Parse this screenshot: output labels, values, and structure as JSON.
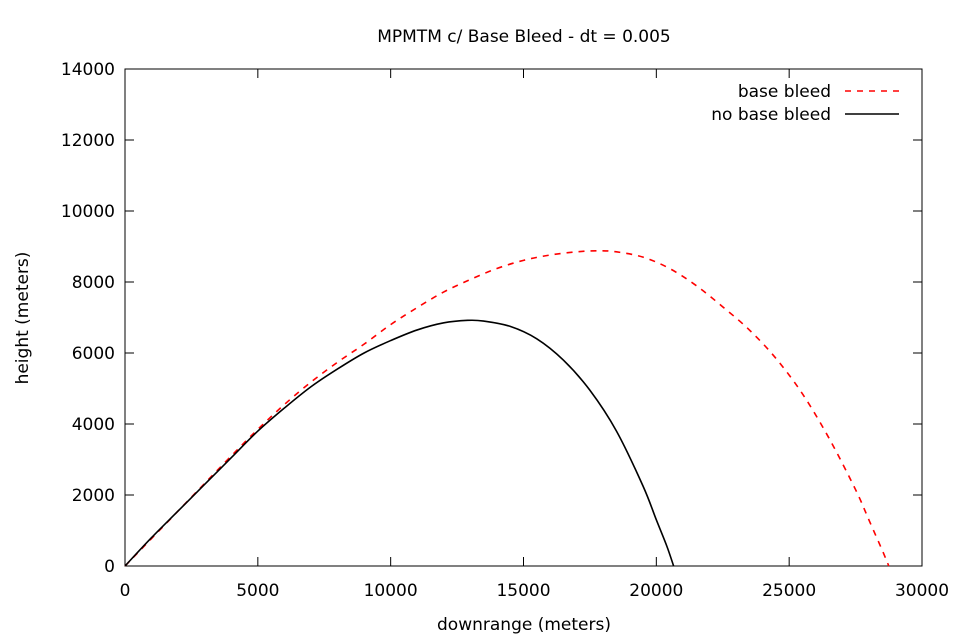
{
  "chart_data": {
    "type": "line",
    "title": "MPMTM c/ Base Bleed - dt = 0.005",
    "xlabel": "downrange (meters)",
    "ylabel": "height (meters)",
    "xlim": [
      0,
      30000
    ],
    "ylim": [
      0,
      14000
    ],
    "xticks": [
      0,
      5000,
      10000,
      15000,
      20000,
      25000,
      30000
    ],
    "yticks": [
      0,
      2000,
      4000,
      6000,
      8000,
      10000,
      12000,
      14000
    ],
    "xtick_labels": [
      "0",
      "5000",
      "10000",
      "15000",
      "20000",
      "25000",
      "30000"
    ],
    "ytick_labels": [
      "0",
      "2000",
      "4000",
      "6000",
      "8000",
      "10000",
      "12000",
      "14000"
    ],
    "grid": false,
    "legend_position": "top-right",
    "series": [
      {
        "name": "base bleed",
        "color": "#ff0000",
        "dash": "dashed",
        "x": [
          0,
          2000,
          4000,
          5000,
          6000,
          7000,
          8000,
          9000,
          10000,
          11000,
          12000,
          13000,
          14000,
          15000,
          16000,
          17000,
          17800,
          18500,
          19500,
          20500,
          21500,
          22500,
          23500,
          24500,
          25500,
          26500,
          27500,
          28000,
          28500,
          28750
        ],
        "y": [
          0,
          1550,
          3100,
          3850,
          4550,
          5180,
          5740,
          6250,
          6800,
          7280,
          7720,
          8070,
          8380,
          8610,
          8760,
          8850,
          8880,
          8850,
          8700,
          8380,
          7900,
          7300,
          6650,
          5850,
          4850,
          3600,
          2150,
          1300,
          450,
          0
        ]
      },
      {
        "name": "no base bleed",
        "color": "#000000",
        "dash": "solid",
        "x": [
          0,
          1000,
          2000,
          3000,
          4000,
          5000,
          6000,
          7000,
          8000,
          9000,
          10000,
          11000,
          12000,
          12900,
          13500,
          14500,
          15500,
          16500,
          17500,
          18500,
          19500,
          20000,
          20400,
          20650
        ],
        "y": [
          0,
          800,
          1550,
          2300,
          3050,
          3800,
          4450,
          5050,
          5550,
          6000,
          6350,
          6650,
          6850,
          6920,
          6900,
          6750,
          6400,
          5800,
          4950,
          3800,
          2250,
          1300,
          550,
          0
        ]
      }
    ]
  }
}
